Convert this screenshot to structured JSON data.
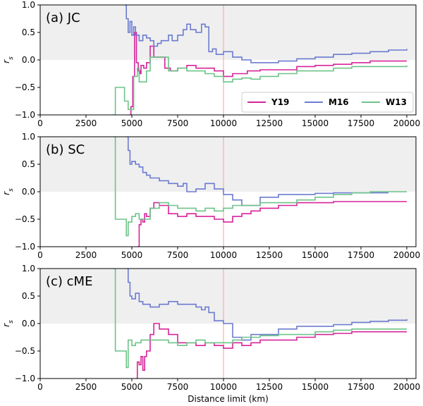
{
  "colors": {
    "Y19": "#d6249a",
    "M16": "#6c7bd0",
    "W13": "#6cc489",
    "vline": "#f2a78f",
    "shade": "#efefef"
  },
  "chart_data": [
    {
      "type": "line",
      "title": "(a) JC",
      "ylabel": "r_s",
      "xlim": [
        0,
        20500
      ],
      "ylim": [
        -1.0,
        1.0
      ],
      "xticks": [
        0,
        2500,
        5000,
        7500,
        10000,
        12500,
        15000,
        17500,
        20000
      ],
      "yticks": [
        -1.0,
        -0.5,
        0.0,
        0.5,
        1.0
      ],
      "shade_above": 0.0,
      "vline_x": 10000,
      "legend": {
        "position": "lower-right",
        "entries": [
          "Y19",
          "M16",
          "W13"
        ]
      },
      "series": [
        {
          "name": "Y19",
          "x": [
            4850,
            4950,
            5050,
            5150,
            5250,
            5350,
            5450,
            5500,
            5650,
            5800,
            6000,
            6200,
            6500,
            6800,
            7100,
            7500,
            8000,
            8500,
            9000,
            9500,
            10000,
            10500,
            11000,
            11300,
            12000,
            13000,
            14000,
            15000,
            16000,
            17000,
            18000,
            19000,
            20000
          ],
          "y": [
            -1.0,
            -0.85,
            -0.3,
            0.5,
            -0.05,
            -0.2,
            -0.25,
            -0.1,
            -0.15,
            -0.05,
            0.25,
            0.05,
            0.05,
            -0.15,
            -0.2,
            -0.15,
            -0.1,
            -0.15,
            -0.15,
            -0.2,
            -0.3,
            -0.25,
            -0.25,
            -0.2,
            -0.18,
            -0.18,
            -0.12,
            -0.1,
            -0.08,
            -0.05,
            -0.02,
            -0.02,
            -0.02
          ]
        },
        {
          "name": "M16",
          "x": [
            4600,
            4700,
            4800,
            4900,
            5000,
            5100,
            5200,
            5400,
            5600,
            5800,
            6000,
            6200,
            6400,
            6600,
            7000,
            7200,
            7500,
            7800,
            8000,
            8200,
            8500,
            8800,
            9000,
            9200,
            9400,
            9600,
            10000,
            10500,
            11000,
            11500,
            12000,
            13000,
            14000,
            15000,
            16000,
            17000,
            18000,
            19000,
            20000
          ],
          "y": [
            1.0,
            0.75,
            0.5,
            0.7,
            0.45,
            0.6,
            0.45,
            0.35,
            0.45,
            0.4,
            0.35,
            0.25,
            0.3,
            0.35,
            0.45,
            0.35,
            0.45,
            0.55,
            0.65,
            0.55,
            0.5,
            0.65,
            0.6,
            0.15,
            0.2,
            0.1,
            0.15,
            0.05,
            0.0,
            -0.05,
            -0.05,
            -0.02,
            0.02,
            0.05,
            0.1,
            0.12,
            0.15,
            0.18,
            0.2
          ]
        },
        {
          "name": "W13",
          "x": [
            3950,
            4100,
            4500,
            4600,
            4800,
            5000,
            5100,
            5300,
            5400,
            5600,
            5800,
            6000,
            6500,
            7000,
            7500,
            8000,
            8500,
            9000,
            9500,
            10000,
            10500,
            11000,
            11500,
            12000,
            13000,
            14000,
            15000,
            16000,
            17000,
            18000,
            19000,
            20000
          ],
          "y": [
            -1.0,
            -0.5,
            -0.5,
            -0.75,
            -0.9,
            -0.9,
            -0.3,
            -0.15,
            -0.4,
            -0.4,
            -0.2,
            0.05,
            0.05,
            -0.2,
            -0.15,
            -0.2,
            -0.2,
            -0.25,
            -0.3,
            -0.4,
            -0.35,
            -0.33,
            -0.35,
            -0.3,
            -0.25,
            -0.2,
            -0.2,
            -0.15,
            -0.12,
            -0.12,
            -0.12,
            -0.1
          ]
        }
      ]
    },
    {
      "type": "line",
      "title": "(b) SC",
      "ylabel": "r_s",
      "xlim": [
        0,
        20500
      ],
      "ylim": [
        -1.0,
        1.0
      ],
      "xticks": [
        0,
        2500,
        5000,
        7500,
        10000,
        12500,
        15000,
        17500,
        20000
      ],
      "yticks": [
        -1.0,
        -0.5,
        0.0,
        0.5,
        1.0
      ],
      "shade_above": 0.0,
      "vline_x": 10000,
      "series": [
        {
          "name": "Y19",
          "x": [
            5300,
            5400,
            5500,
            5600,
            5700,
            5800,
            6000,
            6200,
            6500,
            7000,
            7500,
            8000,
            8500,
            9000,
            9500,
            10000,
            10500,
            11000,
            11500,
            12000,
            12500,
            13000,
            14000,
            15000,
            16000,
            17000,
            18000,
            19000,
            20000
          ],
          "y": [
            -1.0,
            -0.6,
            -0.5,
            -0.55,
            -0.4,
            -0.45,
            -0.3,
            -0.2,
            -0.25,
            -0.4,
            -0.45,
            -0.4,
            -0.45,
            -0.45,
            -0.5,
            -0.55,
            -0.45,
            -0.4,
            -0.35,
            -0.3,
            -0.3,
            -0.25,
            -0.2,
            -0.2,
            -0.18,
            -0.18,
            -0.18,
            -0.18,
            -0.18
          ]
        },
        {
          "name": "M16",
          "x": [
            4700,
            4800,
            4900,
            5000,
            5200,
            5400,
            5600,
            5800,
            6000,
            6500,
            7000,
            7500,
            7800,
            8000,
            8500,
            9000,
            9500,
            10000,
            10500,
            11000,
            12000,
            13000,
            14000,
            15000,
            16000,
            17000,
            18000,
            19000
          ],
          "y": [
            1.0,
            0.75,
            0.5,
            0.55,
            0.5,
            0.45,
            0.35,
            0.3,
            0.25,
            0.2,
            0.15,
            0.1,
            0.15,
            0.0,
            0.05,
            0.15,
            0.05,
            -0.05,
            -0.15,
            -0.25,
            -0.1,
            -0.05,
            -0.05,
            -0.03,
            -0.02,
            -0.02,
            -0.02,
            -0.02
          ]
        },
        {
          "name": "W13",
          "x": [
            4000,
            4100,
            4500,
            4700,
            4800,
            5000,
            5200,
            5400,
            5600,
            6000,
            6500,
            7000,
            7500,
            8000,
            8500,
            9000,
            9500,
            10000,
            10500,
            11000,
            12000,
            13000,
            14000,
            15000,
            16000,
            17000,
            18000,
            19000,
            20000
          ],
          "y": [
            1.0,
            -0.5,
            -0.5,
            -0.8,
            -0.55,
            -0.45,
            -0.4,
            -0.5,
            -0.5,
            -0.3,
            -0.2,
            -0.25,
            -0.3,
            -0.3,
            -0.35,
            -0.3,
            -0.35,
            -0.3,
            -0.25,
            -0.25,
            -0.2,
            -0.2,
            -0.15,
            -0.1,
            -0.05,
            -0.02,
            0.0,
            0.0,
            0.0
          ]
        }
      ]
    },
    {
      "type": "line",
      "title": "(c) cME",
      "ylabel": "r_s",
      "xlabel": "Distance limit (km)",
      "xlim": [
        0,
        20500
      ],
      "ylim": [
        -1.0,
        1.0
      ],
      "xticks": [
        0,
        2500,
        5000,
        7500,
        10000,
        12500,
        15000,
        17500,
        20000
      ],
      "yticks": [
        -1.0,
        -0.5,
        0.0,
        0.5,
        1.0
      ],
      "shade_above": 0.0,
      "vline_x": 10000,
      "series": [
        {
          "name": "Y19",
          "x": [
            5200,
            5300,
            5400,
            5500,
            5600,
            5700,
            5800,
            6000,
            6200,
            6500,
            7000,
            7500,
            8000,
            8500,
            9000,
            9500,
            10000,
            10500,
            11000,
            11500,
            12000,
            13000,
            14000,
            15000,
            16000,
            17000,
            18000,
            19000,
            20000
          ],
          "y": [
            -1.0,
            -0.7,
            -0.75,
            -0.6,
            -0.85,
            -0.6,
            -0.5,
            -0.2,
            0.0,
            -0.1,
            -0.2,
            -0.35,
            -0.35,
            -0.4,
            -0.35,
            -0.4,
            -0.45,
            -0.35,
            -0.4,
            -0.35,
            -0.3,
            -0.3,
            -0.25,
            -0.2,
            -0.18,
            -0.15,
            -0.15,
            -0.15,
            -0.15
          ]
        },
        {
          "name": "M16",
          "x": [
            4700,
            4800,
            4900,
            5000,
            5200,
            5400,
            5600,
            6000,
            6500,
            7000,
            7500,
            8000,
            8500,
            8800,
            9000,
            9200,
            9500,
            10000,
            10500,
            11000,
            11500,
            12000,
            13000,
            14000,
            15000,
            16000,
            17000,
            18000,
            19000,
            20000
          ],
          "y": [
            1.0,
            0.75,
            0.5,
            0.45,
            0.55,
            0.4,
            0.35,
            0.3,
            0.35,
            0.4,
            0.35,
            0.35,
            0.3,
            0.25,
            0.3,
            0.2,
            0.05,
            0.0,
            -0.25,
            -0.3,
            -0.2,
            -0.2,
            -0.1,
            -0.05,
            -0.05,
            -0.02,
            0.02,
            0.04,
            0.06,
            0.08
          ]
        },
        {
          "name": "W13",
          "x": [
            3950,
            4100,
            4500,
            4700,
            4800,
            5000,
            5200,
            5500,
            6000,
            6500,
            7000,
            7500,
            8000,
            8500,
            9000,
            9500,
            10000,
            10500,
            11000,
            12000,
            13000,
            14000,
            15000,
            16000,
            17000,
            18000,
            19000,
            20000
          ],
          "y": [
            1.0,
            -0.5,
            -0.5,
            -0.8,
            -0.3,
            -0.4,
            -0.35,
            -0.3,
            -0.3,
            -0.3,
            -0.35,
            -0.4,
            -0.35,
            -0.3,
            -0.35,
            -0.35,
            -0.35,
            -0.3,
            -0.25,
            -0.22,
            -0.2,
            -0.2,
            -0.15,
            -0.12,
            -0.1,
            -0.1,
            -0.1,
            -0.1
          ]
        }
      ]
    }
  ]
}
